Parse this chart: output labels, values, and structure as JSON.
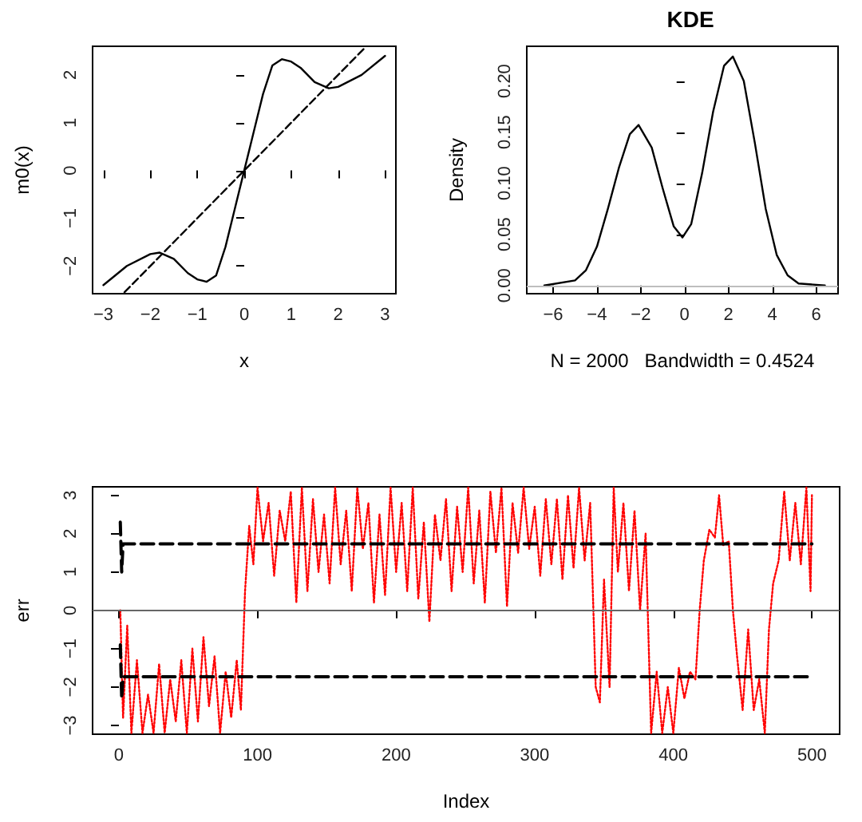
{
  "chart_data": [
    {
      "type": "line",
      "xlabel": "x",
      "ylabel": "m0(x)",
      "xlim": [
        -3.23,
        3.23
      ],
      "ylim": [
        -2.58,
        2.6
      ],
      "xticks": [
        -3,
        -2,
        -1,
        0,
        1,
        2,
        3
      ],
      "yticks": [
        -2,
        -1,
        0,
        1,
        2
      ],
      "grid": false,
      "series": [
        {
          "color": "#000000",
          "line_style": "solid",
          "x": [
            -3,
            -2.5,
            -2,
            -1.8,
            -1.5,
            -1.2,
            -1,
            -0.8,
            -0.6,
            -0.4,
            -0.2,
            0,
            0.2,
            0.4,
            0.6,
            0.8,
            1,
            1.2,
            1.5,
            1.8,
            2,
            2.5,
            3
          ],
          "values": [
            -2.4,
            -2.0,
            -1.75,
            -1.72,
            -1.85,
            -2.15,
            -2.28,
            -2.33,
            -2.2,
            -1.6,
            -0.8,
            0,
            0.8,
            1.6,
            2.2,
            2.33,
            2.28,
            2.15,
            1.85,
            1.72,
            1.75,
            2.0,
            2.4
          ]
        },
        {
          "color": "#000000",
          "line_style": "dashed",
          "x": [
            -2.55,
            2.55
          ],
          "values": [
            -2.55,
            2.55
          ]
        }
      ]
    },
    {
      "type": "line",
      "title": "KDE",
      "xlabel": "N = 2000   Bandwidth = 0.4524",
      "ylabel": "Density",
      "xlim": [
        -7.2,
        7.0
      ],
      "ylim": [
        -0.008,
        0.234
      ],
      "xticks": [
        -6,
        -4,
        -2,
        0,
        2,
        4,
        6
      ],
      "yticks": [
        {
          "value": 0,
          "label": "0.00"
        },
        {
          "value": 0.05,
          "label": "0.05"
        },
        {
          "value": 0.1,
          "label": "0.10"
        },
        {
          "value": 0.15,
          "label": "0.15"
        },
        {
          "value": 0.2,
          "label": "0.20"
        }
      ],
      "grid": false,
      "ref_lines": [
        {
          "axis": "y",
          "value": 0,
          "color": "#bebebe"
        }
      ],
      "series": [
        {
          "color": "#000000",
          "line_style": "solid",
          "x": [
            -6.4,
            -5,
            -4.5,
            -4,
            -3.5,
            -3,
            -2.5,
            -2.1,
            -1.5,
            -1,
            -0.5,
            -0.1,
            0.3,
            0.8,
            1.3,
            1.8,
            2.2,
            2.7,
            3.2,
            3.7,
            4.2,
            4.7,
            5.2,
            6.4
          ],
          "values": [
            0,
            0.005,
            0.015,
            0.038,
            0.075,
            0.115,
            0.148,
            0.157,
            0.135,
            0.095,
            0.058,
            0.047,
            0.06,
            0.11,
            0.17,
            0.215,
            0.224,
            0.2,
            0.14,
            0.075,
            0.03,
            0.01,
            0.002,
            0
          ]
        }
      ]
    },
    {
      "type": "line",
      "xlabel": "Index",
      "ylabel": "err",
      "xlim": [
        -19,
        520
      ],
      "ylim": [
        -3.23,
        3.22
      ],
      "xticks": [
        0,
        100,
        200,
        300,
        400,
        500
      ],
      "yticks": [
        -3,
        -2,
        -1,
        0,
        1,
        2,
        3
      ],
      "grid": false,
      "ref_lines": [
        {
          "axis": "y",
          "value": 0,
          "color": "#666666"
        }
      ],
      "series": [
        {
          "color": "#ff0000",
          "line_style": "dotted",
          "x": [
            1,
            3,
            6,
            9,
            13,
            17,
            21,
            25,
            29,
            33,
            37,
            41,
            45,
            49,
            53,
            57,
            61,
            65,
            69,
            73,
            77,
            81,
            85,
            88,
            91,
            94,
            97,
            100,
            104,
            108,
            112,
            116,
            120,
            124,
            128,
            132,
            136,
            140,
            144,
            148,
            152,
            156,
            160,
            164,
            168,
            172,
            176,
            180,
            184,
            188,
            192,
            196,
            200,
            204,
            208,
            212,
            216,
            220,
            224,
            228,
            232,
            236,
            240,
            244,
            248,
            252,
            256,
            260,
            264,
            268,
            272,
            276,
            280,
            284,
            288,
            292,
            296,
            300,
            304,
            308,
            312,
            316,
            320,
            324,
            328,
            332,
            336,
            340,
            344,
            347,
            350,
            354,
            357,
            360,
            364,
            368,
            372,
            376,
            380,
            384,
            388,
            392,
            396,
            400,
            404,
            408,
            412,
            416,
            419,
            422,
            426,
            430,
            433,
            436,
            440,
            443,
            446,
            450,
            454,
            458,
            462,
            466,
            469,
            472,
            476,
            480,
            484,
            488,
            492,
            496,
            499,
            500
          ],
          "values": [
            0.0,
            -2.8,
            -0.4,
            -3.2,
            -1.3,
            -3.2,
            -2.2,
            -3.2,
            -1.4,
            -3.2,
            -1.8,
            -2.9,
            -1.3,
            -3.2,
            -1.0,
            -2.9,
            -0.7,
            -2.5,
            -1.2,
            -3.2,
            -1.6,
            -2.8,
            -1.3,
            -2.6,
            0.5,
            2.2,
            1.2,
            3.2,
            1.8,
            2.8,
            0.9,
            2.6,
            1.8,
            3.1,
            0.2,
            3.2,
            0.5,
            2.9,
            1.0,
            2.5,
            0.7,
            3.2,
            1.2,
            2.6,
            0.5,
            3.2,
            1.6,
            2.8,
            0.2,
            2.5,
            0.4,
            3.2,
            1.0,
            2.8,
            0.5,
            3.2,
            0.3,
            2.3,
            -0.3,
            2.5,
            1.3,
            2.9,
            0.5,
            2.7,
            1.0,
            3.2,
            0.7,
            2.6,
            0.2,
            3.1,
            1.5,
            3.2,
            0.1,
            2.8,
            1.5,
            3.2,
            1.6,
            2.7,
            0.9,
            2.9,
            1.2,
            2.9,
            0.8,
            3.0,
            1.1,
            3.2,
            1.3,
            2.8,
            -2.0,
            -2.4,
            0.8,
            -2.0,
            3.2,
            1.0,
            2.8,
            0.5,
            2.6,
            0.0,
            2.0,
            -3.2,
            -1.6,
            -3.2,
            -2.0,
            -3.2,
            -1.5,
            -2.3,
            -1.6,
            -1.8,
            0.0,
            1.3,
            2.1,
            1.9,
            3.0,
            1.7,
            1.8,
            0.0,
            -1.2,
            -2.6,
            -0.5,
            -2.6,
            -1.8,
            -3.2,
            -0.5,
            0.7,
            1.3,
            3.1,
            1.3,
            2.8,
            1.2,
            3.2,
            0.5,
            3.0
          ]
        },
        {
          "color": "#000000",
          "line_style": "dashed",
          "x": [
            1,
            2,
            3,
            500
          ],
          "values": [
            2.3,
            1.0,
            1.73,
            1.73
          ]
        },
        {
          "color": "#000000",
          "line_style": "dashed",
          "x": [
            1,
            2,
            3,
            500
          ],
          "values": [
            -0.9,
            -2.3,
            -1.73,
            -1.73
          ]
        }
      ]
    }
  ]
}
